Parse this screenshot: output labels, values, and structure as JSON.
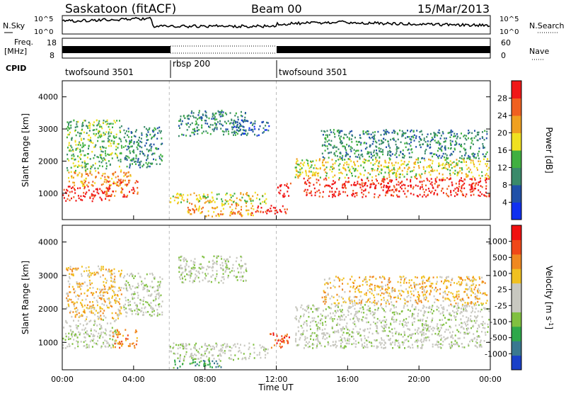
{
  "header": {
    "title": "Saskatoon (fitACF)",
    "beam": "Beam 00",
    "date": "15/Mar/2013"
  },
  "noise_panel": {
    "left_label": "N.Sky",
    "right_label": "N.Search",
    "left_ticks": [
      "10^5",
      "10^0"
    ],
    "right_ticks": [
      "10^5",
      "10^0"
    ]
  },
  "freq_panel": {
    "left_label_1": "Freq.",
    "left_label_2": "[MHz]",
    "right_label": "Nave",
    "left_ticks": [
      "18",
      "8"
    ],
    "right_ticks": [
      "60",
      "0"
    ]
  },
  "cpid": {
    "label": "CPID",
    "segments": [
      {
        "name": "twofsound 3501",
        "start_h": 0,
        "end_h": 6
      },
      {
        "name": "rbsp 200",
        "start_h": 6,
        "end_h": 12
      },
      {
        "name": "twofsound 3501",
        "start_h": 12,
        "end_h": 24
      }
    ]
  },
  "chart_data": [
    {
      "type": "heatmap",
      "title": "",
      "xlabel": "Time UT",
      "ylabel": "Slant Range [km]",
      "xlim": [
        0,
        24
      ],
      "ylim": [
        180,
        4500
      ],
      "x_ticks": [
        "00:00",
        "04:00",
        "08:00",
        "12:00",
        "16:00",
        "20:00",
        "00:00"
      ],
      "y_ticks": [
        1000,
        2000,
        3000,
        4000
      ],
      "colorbar_label": "Power [dB]",
      "colorbar_ticks": [
        "4",
        "8",
        "12",
        "16",
        "20",
        "24",
        "28"
      ],
      "colorbar_colors": [
        "#1030f0",
        "#2050a8",
        "#3a8a6a",
        "#40b040",
        "#f0e020",
        "#f0a020",
        "#f06020",
        "#f01818"
      ],
      "echo_regions": [
        {
          "t0": 0.0,
          "t1": 2.6,
          "r0": 780,
          "r1": 1250,
          "level": 7
        },
        {
          "t0": 0.3,
          "t1": 3.8,
          "r0": 1250,
          "r1": 1700,
          "level": 5
        },
        {
          "t0": 2.4,
          "t1": 4.2,
          "r0": 900,
          "r1": 1450,
          "level": 6
        },
        {
          "t0": 0.2,
          "t1": 3.3,
          "r0": 1700,
          "r1": 3300,
          "level": 3
        },
        {
          "t0": 3.4,
          "t1": 5.6,
          "r0": 1800,
          "r1": 3100,
          "level": 2
        },
        {
          "t0": 6.5,
          "t1": 10.3,
          "r0": 2800,
          "r1": 3600,
          "level": 2
        },
        {
          "t0": 9.5,
          "t1": 11.6,
          "r0": 2800,
          "r1": 3300,
          "level": 1
        },
        {
          "t0": 6.0,
          "t1": 11.4,
          "r0": 700,
          "r1": 1050,
          "level": 4
        },
        {
          "t0": 7.0,
          "t1": 10.8,
          "r0": 300,
          "r1": 700,
          "level": 5
        },
        {
          "t0": 10.6,
          "t1": 12.6,
          "r0": 380,
          "r1": 650,
          "level": 7
        },
        {
          "t0": 12.0,
          "t1": 12.8,
          "r0": 900,
          "r1": 1350,
          "level": 7
        },
        {
          "t0": 13.5,
          "t1": 23.9,
          "r0": 900,
          "r1": 1500,
          "level": 7
        },
        {
          "t0": 13.0,
          "t1": 23.9,
          "r0": 1500,
          "r1": 2100,
          "level": 4
        },
        {
          "t0": 14.5,
          "t1": 23.8,
          "r0": 2100,
          "r1": 3000,
          "level": 2
        }
      ]
    },
    {
      "type": "heatmap",
      "title": "",
      "xlabel": "Time UT",
      "ylabel": "Slant Range [km]",
      "xlim": [
        0,
        24
      ],
      "ylim": [
        180,
        4500
      ],
      "x_ticks": [
        "00:00",
        "04:00",
        "08:00",
        "12:00",
        "16:00",
        "20:00",
        "00:00"
      ],
      "y_ticks": [
        1000,
        2000,
        3000,
        4000
      ],
      "colorbar_label": "Velocity [m s",
      "colorbar_label_sup": "-1",
      "colorbar_label_end": "]",
      "colorbar_ticks": [
        "1000",
        "500",
        "100",
        "25",
        "-25",
        "-100",
        "-500",
        "-1000"
      ],
      "colorbar_colors": [
        "#1a40c8",
        "#3a7890",
        "#2ea84a",
        "#80c040",
        "#c8c8c0",
        "#c8c8c0",
        "#f0c020",
        "#f08820",
        "#f04818",
        "#f01010"
      ],
      "echo_regions": [
        {
          "t0": 0.0,
          "t1": 3.0,
          "r0": 850,
          "r1": 1700,
          "level": 4
        },
        {
          "t0": 2.8,
          "t1": 4.2,
          "r0": 850,
          "r1": 1400,
          "level": 7
        },
        {
          "t0": 0.2,
          "t1": 3.3,
          "r0": 1700,
          "r1": 3300,
          "level": 6
        },
        {
          "t0": 3.4,
          "t1": 5.6,
          "r0": 1800,
          "r1": 3100,
          "level": 4
        },
        {
          "t0": 6.5,
          "t1": 10.3,
          "r0": 2800,
          "r1": 3600,
          "level": 4
        },
        {
          "t0": 6.0,
          "t1": 11.5,
          "r0": 500,
          "r1": 1000,
          "level": 4
        },
        {
          "t0": 6.2,
          "t1": 9.0,
          "r0": 250,
          "r1": 500,
          "level": 2
        },
        {
          "t0": 11.6,
          "t1": 12.8,
          "r0": 850,
          "r1": 1300,
          "level": 8
        },
        {
          "t0": 13.0,
          "t1": 23.9,
          "r0": 850,
          "r1": 2150,
          "level": 4
        },
        {
          "t0": 14.5,
          "t1": 23.8,
          "r0": 2150,
          "r1": 3000,
          "level": 6
        }
      ]
    }
  ]
}
